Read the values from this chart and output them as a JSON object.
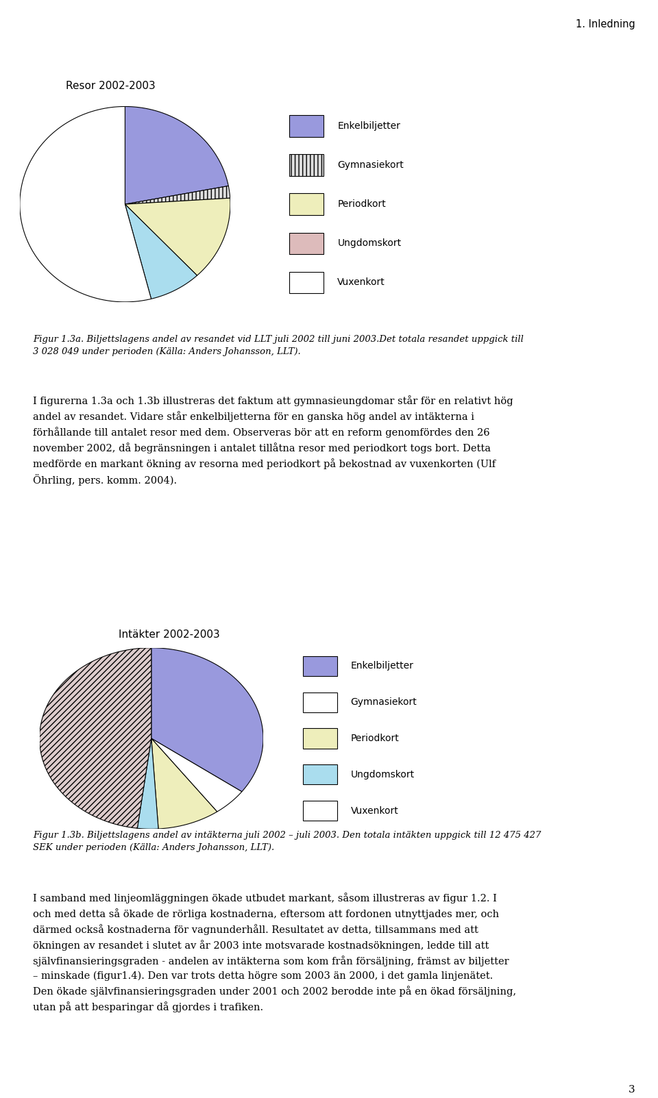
{
  "header": "1. Inledning",
  "chart1_title": "Resor 2002-2003",
  "chart2_title": "Intäkter 2002-2003",
  "legend_labels": [
    "Enkelbiljetter",
    "Gymnasiekort",
    "Periodkort",
    "Ungdomskort",
    "Vuxenkort"
  ],
  "chart1_values": [
    22,
    2,
    14,
    8,
    54
  ],
  "chart2_values": [
    35,
    5,
    9,
    3,
    48
  ],
  "chart1_colors": [
    "#9999dd",
    "#dddddd",
    "#eeeebb",
    "#aaddee",
    "#ffffff"
  ],
  "chart1_hatches": [
    null,
    "|||",
    null,
    null,
    null
  ],
  "chart2_colors": [
    "#9999dd",
    "#ffffff",
    "#eeeebb",
    "#aaddee",
    "#ddcccc"
  ],
  "chart2_hatches": [
    null,
    null,
    null,
    null,
    "////"
  ],
  "legend1_colors": [
    "#9999dd",
    "#dddddd",
    "#eeeebb",
    "#ddbbbb",
    "#ffffff"
  ],
  "legend1_hatches": [
    null,
    "|||",
    null,
    null,
    null
  ],
  "legend2_colors": [
    "#9999dd",
    "#ffffff",
    "#eeeebb",
    "#aaddee",
    "#ffffff"
  ],
  "legend2_hatches": [
    null,
    null,
    null,
    null,
    null
  ],
  "fig1a_caption": "Figur 1.3a. Biljettslagens andel av resandet vid LLT juli 2002 till juni 2003.Det totala resandet uppgick till\n3 028 049 under perioden (Källa: Anders Johansson, LLT).",
  "body_text1": "I figurerna 1.3a och 1.3b illustreras det faktum att gymnasieungdomar står för en relativt hög\nandel av resandet. Vidare står enkelbiljetterna för en ganska hög andel av intäkterna i\nförhållande till antalet resor med dem. Observeras bör att en reform genomfördes den 26\nnovember 2002, då begränsningen i antalet tillåtna resor med periodkort togs bort. Detta\nmedförde en markant ökning av resorna med periodkort på bekostnad av vuxenkorten (Ulf\nÖhrling, pers. komm. 2004).",
  "fig1b_caption": "Figur 1.3b. Biljettslagens andel av intäkterna juli 2002 – juli 2003. Den totala intäkten uppgick till 12 475 427\nSEK under perioden (Källa: Anders Johansson, LLT).",
  "body_text2": "I samband med linjeomläggningen ökade utbudet markant, såsom illustreras av figur 1.2. I\noch med detta så ökade de rörliga kostnaderna, eftersom att fordonen utnyttjades mer, och\ndärmed också kostnaderna för vagnunderhåll. Resultatet av detta, tillsammans med att\nökningen av resandet i slutet av år 2003 inte motsvarade kostnadsökningen, ledde till att\nsjälvfinansieringsgraden - andelen av intäkterna som kom från försäljning, främst av biljetter\n– minskade (figur1.4). Den var trots detta högre som 2003 än 2000, i det gamla linjenätet.\nDen ökade självfinansieringsgraden under 2001 och 2002 berodde inte på en ökad försäljning,\nutan på att besparingar då gjordes i trafiken.",
  "page_number": "3",
  "background_color": "#ffffff",
  "text_color": "#000000"
}
